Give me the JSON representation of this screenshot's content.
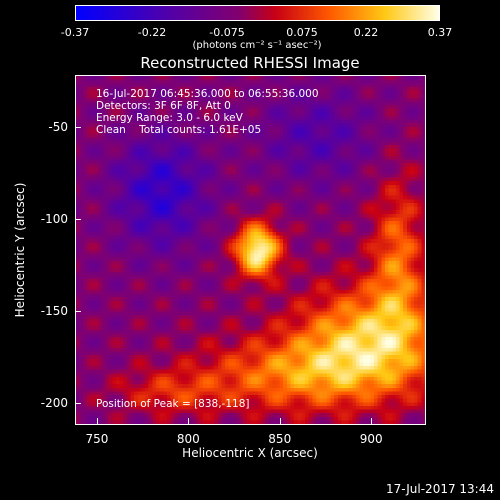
{
  "chart_data": {
    "type": "heatmap",
    "title": "Reconstructed RHESSI Image",
    "xlabel": "Heliocentric X (arcsec)",
    "ylabel": "Heliocentric Y (arcsec)",
    "xlim": [
      738,
      930
    ],
    "ylim": [
      -212,
      -22
    ],
    "x_ticks": [
      "750",
      "800",
      "850",
      "900"
    ],
    "x_tick_values": [
      750,
      800,
      850,
      900
    ],
    "y_ticks": [
      "-50",
      "-100",
      "-150",
      "-200"
    ],
    "y_tick_values": [
      -50,
      -100,
      -150,
      -200
    ],
    "colorbar": {
      "ticks": [
        "-0.37",
        "-0.22",
        "-0.075",
        "0.075",
        "0.22",
        "0.37"
      ],
      "range": [
        -0.37,
        0.37
      ],
      "unit": "(photons cm⁻² s⁻¹ asec⁻²)"
    },
    "annotations": {
      "time_range": "16-Jul-2017 06:45:36.000 to 06:55:36.000",
      "detectors": "Detectors: 3F 6F 8F, Att 0",
      "energy": "Energy Range: 3.0 - 6.0 keV",
      "method": "Clean    Total counts: 1.61E+05",
      "peak": "Position of Peak = [838,-118]"
    },
    "peak": {
      "x": 838,
      "y": -118
    }
  },
  "footer": "17-Jul-2017 13:44"
}
